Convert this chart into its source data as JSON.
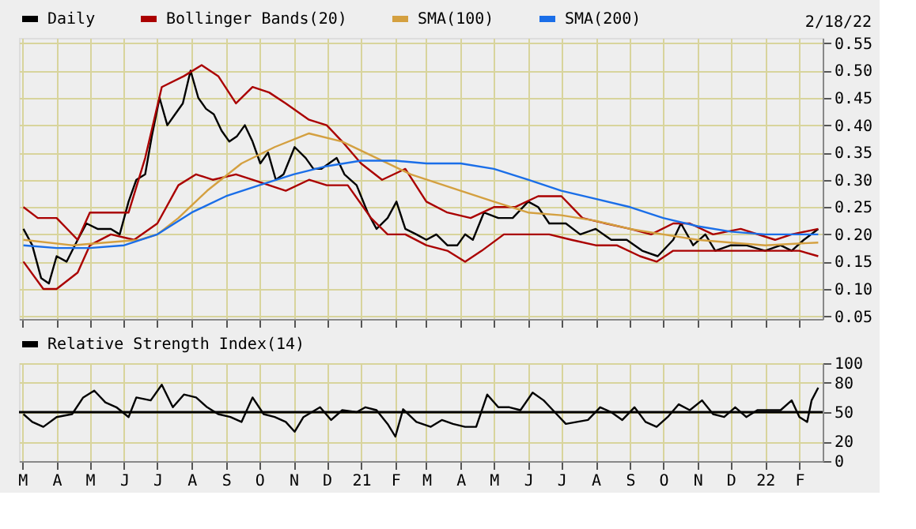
{
  "chart_data": [
    {
      "type": "line",
      "annotations": [
        "2/18/22"
      ],
      "legend": "top",
      "grid": true,
      "tick_labels": "y",
      "xlim": [
        "2020-02-27",
        "2022-02-22"
      ],
      "xticks": [
        {
          "value": "2020-03-01",
          "label": null
        },
        {
          "value": "2020-04-01",
          "label": null
        },
        {
          "value": "2020-05-01",
          "label": null
        },
        {
          "value": "2020-06-01",
          "label": null
        },
        {
          "value": "2020-07-01",
          "label": null
        },
        {
          "value": "2020-08-01",
          "label": null
        },
        {
          "value": "2020-09-01",
          "label": null
        },
        {
          "value": "2020-10-01",
          "label": null
        },
        {
          "value": "2020-11-01",
          "label": null
        },
        {
          "value": "2020-12-01",
          "label": null
        },
        {
          "value": "2021-01-01",
          "label": null
        },
        {
          "value": "2021-02-01",
          "label": null
        },
        {
          "value": "2021-03-01",
          "label": null
        },
        {
          "value": "2021-04-01",
          "label": null
        },
        {
          "value": "2021-05-01",
          "label": null
        },
        {
          "value": "2021-06-01",
          "label": null
        },
        {
          "value": "2021-07-01",
          "label": null
        },
        {
          "value": "2021-08-01",
          "label": null
        },
        {
          "value": "2021-09-01",
          "label": null
        },
        {
          "value": "2021-10-01",
          "label": null
        },
        {
          "value": "2021-11-01",
          "label": null
        },
        {
          "value": "2021-12-01",
          "label": null
        },
        {
          "value": "2022-01-01",
          "label": null
        },
        {
          "value": "2022-02-01",
          "label": null
        }
      ],
      "ylim": [
        0.045,
        0.56
      ],
      "yticks": [
        {
          "value": 0.05,
          "label": "0.05"
        },
        {
          "value": 0.1,
          "label": "0.10"
        },
        {
          "value": 0.15,
          "label": "0.15"
        },
        {
          "value": 0.2,
          "label": "0.20"
        },
        {
          "value": 0.25,
          "label": "0.25"
        },
        {
          "value": 0.3,
          "label": "0.30"
        },
        {
          "value": 0.35,
          "label": "0.35"
        },
        {
          "value": 0.4,
          "label": "0.40"
        },
        {
          "value": 0.45,
          "label": "0.45"
        },
        {
          "value": 0.5,
          "label": "0.50"
        },
        {
          "value": 0.55,
          "label": "0.55"
        }
      ],
      "series": [
        {
          "name": "Daily",
          "color": "#000000",
          "x": [
            "2020-03-02",
            "2020-03-10",
            "2020-03-18",
            "2020-03-25",
            "2020-04-01",
            "2020-04-10",
            "2020-04-20",
            "2020-04-28",
            "2020-05-08",
            "2020-05-20",
            "2020-05-28",
            "2020-06-05",
            "2020-06-12",
            "2020-06-20",
            "2020-06-26",
            "2020-07-03",
            "2020-07-10",
            "2020-07-17",
            "2020-07-24",
            "2020-07-31",
            "2020-08-07",
            "2020-08-14",
            "2020-08-21",
            "2020-08-28",
            "2020-09-04",
            "2020-09-11",
            "2020-09-18",
            "2020-09-25",
            "2020-10-02",
            "2020-10-09",
            "2020-10-16",
            "2020-10-23",
            "2020-11-02",
            "2020-11-12",
            "2020-11-19",
            "2020-11-26",
            "2020-12-03",
            "2020-12-10",
            "2020-12-17",
            "2020-12-28",
            "2021-01-07",
            "2021-01-15",
            "2021-01-25",
            "2021-02-02",
            "2021-02-10",
            "2021-02-20",
            "2021-03-01",
            "2021-03-10",
            "2021-03-20",
            "2021-03-29",
            "2021-04-05",
            "2021-04-12",
            "2021-04-22",
            "2021-05-05",
            "2021-05-18",
            "2021-06-01",
            "2021-06-10",
            "2021-06-20",
            "2021-07-05",
            "2021-07-18",
            "2021-08-01",
            "2021-08-15",
            "2021-08-29",
            "2021-09-12",
            "2021-09-26",
            "2021-10-10",
            "2021-10-17",
            "2021-10-28",
            "2021-11-08",
            "2021-11-17",
            "2021-12-01",
            "2021-12-15",
            "2022-01-01",
            "2022-01-15",
            "2022-01-25",
            "2022-02-05",
            "2022-02-18"
          ],
          "values": [
            0.21,
            0.18,
            0.12,
            0.11,
            0.16,
            0.15,
            0.19,
            0.22,
            0.21,
            0.21,
            0.2,
            0.26,
            0.3,
            0.31,
            0.38,
            0.45,
            0.4,
            0.42,
            0.44,
            0.5,
            0.45,
            0.43,
            0.42,
            0.39,
            0.37,
            0.38,
            0.4,
            0.37,
            0.33,
            0.35,
            0.3,
            0.31,
            0.36,
            0.34,
            0.32,
            0.32,
            0.33,
            0.34,
            0.31,
            0.29,
            0.24,
            0.21,
            0.23,
            0.26,
            0.21,
            0.2,
            0.19,
            0.2,
            0.18,
            0.18,
            0.2,
            0.19,
            0.24,
            0.23,
            0.23,
            0.26,
            0.25,
            0.22,
            0.22,
            0.2,
            0.21,
            0.19,
            0.19,
            0.17,
            0.16,
            0.19,
            0.22,
            0.18,
            0.2,
            0.17,
            0.18,
            0.18,
            0.17,
            0.18,
            0.17,
            0.19,
            0.21
          ]
        },
        {
          "name": "Bollinger Bands(20)",
          "color": "#aa0000",
          "x": [
            "2020-03-02",
            "2020-03-15",
            "2020-04-01",
            "2020-04-20",
            "2020-05-01",
            "2020-05-20",
            "2020-06-05",
            "2020-06-20",
            "2020-07-05",
            "2020-07-25",
            "2020-08-10",
            "2020-08-25",
            "2020-09-10",
            "2020-09-25",
            "2020-10-10",
            "2020-10-25",
            "2020-11-15",
            "2020-12-01",
            "2020-12-15",
            "2021-01-01",
            "2021-01-20",
            "2021-02-10",
            "2021-03-01",
            "2021-03-20",
            "2021-04-10",
            "2021-05-01",
            "2021-05-20",
            "2021-06-10",
            "2021-07-01",
            "2021-07-20",
            "2021-08-10",
            "2021-09-01",
            "2021-09-20",
            "2021-10-10",
            "2021-10-25",
            "2021-11-15",
            "2021-12-10",
            "2022-01-10",
            "2022-01-25",
            "2022-02-18"
          ],
          "values": [
            0.25,
            0.23,
            0.23,
            0.19,
            0.24,
            0.24,
            0.24,
            0.34,
            0.47,
            0.49,
            0.51,
            0.49,
            0.44,
            0.47,
            0.46,
            0.44,
            0.41,
            0.4,
            0.37,
            0.33,
            0.3,
            0.32,
            0.26,
            0.24,
            0.23,
            0.25,
            0.25,
            0.27,
            0.27,
            0.23,
            0.22,
            0.21,
            0.2,
            0.22,
            0.22,
            0.2,
            0.21,
            0.19,
            0.2,
            0.21
          ]
        },
        {
          "color": "#aa0000",
          "x": [
            "2020-03-02",
            "2020-03-20",
            "2020-04-01",
            "2020-04-20",
            "2020-05-01",
            "2020-05-20",
            "2020-06-10",
            "2020-07-01",
            "2020-07-20",
            "2020-08-05",
            "2020-08-20",
            "2020-09-10",
            "2020-09-25",
            "2020-10-10",
            "2020-10-25",
            "2020-11-15",
            "2020-12-01",
            "2020-12-20",
            "2021-01-10",
            "2021-01-25",
            "2021-02-10",
            "2021-03-01",
            "2021-03-20",
            "2021-04-05",
            "2021-04-20",
            "2021-05-10",
            "2021-06-01",
            "2021-06-20",
            "2021-07-10",
            "2021-08-01",
            "2021-08-20",
            "2021-09-10",
            "2021-09-25",
            "2021-10-10",
            "2021-10-25",
            "2021-11-15",
            "2021-12-15",
            "2022-01-10",
            "2022-02-01",
            "2022-02-18"
          ],
          "values": [
            0.15,
            0.1,
            0.1,
            0.13,
            0.18,
            0.2,
            0.19,
            0.22,
            0.29,
            0.31,
            0.3,
            0.31,
            0.3,
            0.29,
            0.28,
            0.3,
            0.29,
            0.29,
            0.23,
            0.2,
            0.2,
            0.18,
            0.17,
            0.15,
            0.17,
            0.2,
            0.2,
            0.2,
            0.19,
            0.18,
            0.18,
            0.16,
            0.15,
            0.17,
            0.17,
            0.17,
            0.17,
            0.17,
            0.17,
            0.16
          ]
        },
        {
          "name": "SMA(100)",
          "color": "#d4a040",
          "x": [
            "2020-03-02",
            "2020-04-15",
            "2020-05-15",
            "2020-06-15",
            "2020-07-01",
            "2020-07-20",
            "2020-08-15",
            "2020-09-15",
            "2020-10-15",
            "2020-11-15",
            "2020-12-15",
            "2021-01-15",
            "2021-02-15",
            "2021-04-01",
            "2021-05-01",
            "2021-06-01",
            "2021-07-01",
            "2021-08-01",
            "2021-09-01",
            "2021-10-01",
            "2021-11-01",
            "2021-12-01",
            "2022-01-01",
            "2022-02-18"
          ],
          "values": [
            0.19,
            0.18,
            0.185,
            0.19,
            0.2,
            0.23,
            0.28,
            0.33,
            0.36,
            0.385,
            0.37,
            0.34,
            0.31,
            0.28,
            0.26,
            0.24,
            0.235,
            0.225,
            0.21,
            0.2,
            0.19,
            0.185,
            0.18,
            0.185
          ]
        },
        {
          "name": "SMA(200)",
          "color": "#1a6ee8",
          "x": [
            "2020-03-02",
            "2020-04-01",
            "2020-05-01",
            "2020-06-01",
            "2020-07-01",
            "2020-08-01",
            "2020-09-01",
            "2020-10-01",
            "2020-11-01",
            "2020-12-01",
            "2021-01-01",
            "2021-02-01",
            "2021-03-01",
            "2021-04-01",
            "2021-05-01",
            "2021-06-01",
            "2021-07-01",
            "2021-08-01",
            "2021-09-01",
            "2021-10-01",
            "2021-11-01",
            "2021-12-01",
            "2022-01-01",
            "2022-02-18"
          ],
          "values": [
            0.18,
            0.175,
            0.175,
            0.18,
            0.2,
            0.24,
            0.27,
            0.29,
            0.31,
            0.325,
            0.335,
            0.335,
            0.33,
            0.33,
            0.32,
            0.3,
            0.28,
            0.265,
            0.25,
            0.23,
            0.215,
            0.205,
            0.2,
            0.2
          ]
        }
      ]
    },
    {
      "type": "line",
      "legend": "top",
      "grid": true,
      "xlim": [
        "2020-02-27",
        "2022-02-22"
      ],
      "xticks": [
        {
          "value": "2020-03-01",
          "label": "M"
        },
        {
          "value": "2020-04-01",
          "label": "A"
        },
        {
          "value": "2020-05-01",
          "label": "M"
        },
        {
          "value": "2020-06-01",
          "label": "J"
        },
        {
          "value": "2020-07-01",
          "label": "J"
        },
        {
          "value": "2020-08-01",
          "label": "A"
        },
        {
          "value": "2020-09-01",
          "label": "S"
        },
        {
          "value": "2020-10-01",
          "label": "O"
        },
        {
          "value": "2020-11-01",
          "label": "N"
        },
        {
          "value": "2020-12-01",
          "label": "D"
        },
        {
          "value": "2021-01-01",
          "label": "21"
        },
        {
          "value": "2021-02-01",
          "label": "F"
        },
        {
          "value": "2021-03-01",
          "label": "M"
        },
        {
          "value": "2021-04-01",
          "label": "A"
        },
        {
          "value": "2021-05-01",
          "label": "M"
        },
        {
          "value": "2021-06-01",
          "label": "J"
        },
        {
          "value": "2021-07-01",
          "label": "J"
        },
        {
          "value": "2021-08-01",
          "label": "A"
        },
        {
          "value": "2021-09-01",
          "label": "S"
        },
        {
          "value": "2021-10-01",
          "label": "O"
        },
        {
          "value": "2021-11-01",
          "label": "N"
        },
        {
          "value": "2021-12-01",
          "label": "D"
        },
        {
          "value": "2022-01-01",
          "label": "22"
        },
        {
          "value": "2022-02-01",
          "label": "F"
        }
      ],
      "ylim": [
        0,
        100
      ],
      "yticks": [
        0,
        20,
        50,
        80,
        100
      ],
      "ref_lines": [
        {
          "axis": "y",
          "value": 50,
          "color": "#000000"
        }
      ],
      "series": [
        {
          "name": "Relative Strength Index(14)",
          "color": "#000000",
          "x": [
            "2020-03-02",
            "2020-03-10",
            "2020-03-20",
            "2020-04-01",
            "2020-04-15",
            "2020-04-25",
            "2020-05-05",
            "2020-05-15",
            "2020-05-25",
            "2020-06-05",
            "2020-06-12",
            "2020-06-25",
            "2020-07-05",
            "2020-07-15",
            "2020-07-25",
            "2020-08-05",
            "2020-08-15",
            "2020-08-25",
            "2020-09-05",
            "2020-09-15",
            "2020-09-25",
            "2020-10-05",
            "2020-10-15",
            "2020-10-25",
            "2020-11-02",
            "2020-11-10",
            "2020-11-25",
            "2020-12-05",
            "2020-12-15",
            "2020-12-28",
            "2021-01-05",
            "2021-01-15",
            "2021-01-25",
            "2021-02-01",
            "2021-02-08",
            "2021-02-20",
            "2021-03-05",
            "2021-03-15",
            "2021-03-25",
            "2021-04-05",
            "2021-04-15",
            "2021-04-25",
            "2021-05-05",
            "2021-05-15",
            "2021-05-25",
            "2021-06-05",
            "2021-06-15",
            "2021-06-25",
            "2021-07-05",
            "2021-07-15",
            "2021-07-25",
            "2021-08-05",
            "2021-08-15",
            "2021-08-25",
            "2021-09-05",
            "2021-09-15",
            "2021-09-25",
            "2021-10-05",
            "2021-10-15",
            "2021-10-25",
            "2021-11-05",
            "2021-11-15",
            "2021-11-25",
            "2021-12-05",
            "2021-12-15",
            "2021-12-25",
            "2022-01-05",
            "2022-01-15",
            "2022-01-25",
            "2022-02-01",
            "2022-02-08",
            "2022-02-12",
            "2022-02-18"
          ],
          "values": [
            48,
            40,
            35,
            45,
            48,
            65,
            72,
            60,
            55,
            45,
            65,
            62,
            78,
            55,
            68,
            65,
            55,
            48,
            45,
            40,
            65,
            48,
            45,
            40,
            30,
            45,
            55,
            42,
            52,
            50,
            55,
            52,
            38,
            25,
            53,
            40,
            35,
            42,
            38,
            35,
            35,
            68,
            55,
            55,
            52,
            70,
            62,
            50,
            38,
            40,
            42,
            55,
            50,
            42,
            55,
            40,
            35,
            45,
            58,
            52,
            62,
            48,
            45,
            55,
            45,
            52,
            52,
            52,
            62,
            45,
            40,
            62,
            75
          ]
        }
      ]
    }
  ]
}
